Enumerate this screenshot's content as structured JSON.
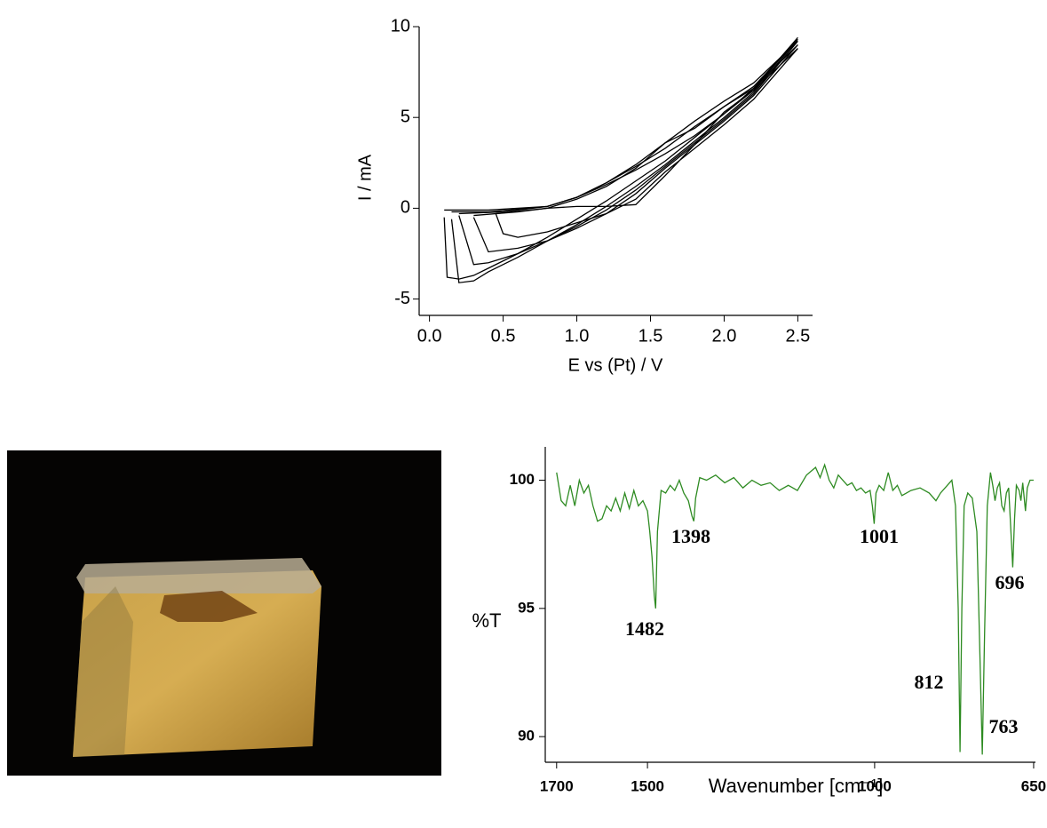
{
  "chart_data": [
    {
      "type": "line",
      "xlabel": "E vs (Pt) / V",
      "ylabel": "I / mA",
      "xlim": [
        -0.07,
        2.6
      ],
      "ylim": [
        -5.9,
        10
      ],
      "xticks": [
        {
          "value": 0,
          "label": "0.0"
        },
        0.5,
        {
          "value": 1,
          "label": "1.0"
        },
        1.5,
        {
          "value": 2,
          "label": "2.0"
        },
        2.5
      ],
      "yticks": [
        -5,
        0,
        5,
        10
      ],
      "series": [
        {
          "color": "#000000",
          "x": [
            0.1,
            0.4,
            0.8,
            1.0,
            1.2,
            1.4,
            1.6,
            1.8,
            2.0,
            2.2,
            2.5,
            2.2,
            2.0,
            1.8,
            1.6,
            1.4,
            1.2,
            1.0,
            0.8,
            0.6,
            0.4,
            0.3,
            0.2,
            0.12,
            0.1
          ],
          "values": [
            -0.1,
            -0.1,
            0.1,
            0.6,
            1.3,
            2.1,
            3.0,
            4.0,
            5.2,
            6.5,
            9.4,
            6.6,
            5.2,
            3.9,
            2.6,
            1.5,
            0.4,
            -0.6,
            -1.6,
            -2.5,
            -3.3,
            -3.7,
            -3.9,
            -3.8,
            -0.5
          ]
        },
        {
          "color": "#000000",
          "x": [
            0.15,
            0.4,
            0.8,
            1.0,
            1.2,
            1.4,
            1.6,
            1.8,
            2.0,
            2.2,
            2.5,
            2.2,
            2.0,
            1.8,
            1.6,
            1.4,
            1.2,
            1.0,
            0.8,
            0.6,
            0.4,
            0.3,
            0.2,
            0.15
          ],
          "values": [
            -0.2,
            -0.2,
            0.1,
            0.6,
            1.4,
            2.3,
            3.3,
            4.5,
            5.6,
            6.7,
            9.3,
            6.4,
            5.0,
            3.7,
            2.4,
            1.2,
            0.1,
            -0.9,
            -1.8,
            -2.7,
            -3.5,
            -4.0,
            -4.1,
            -0.6
          ]
        },
        {
          "color": "#000000",
          "x": [
            0.2,
            0.5,
            0.8,
            1.0,
            1.2,
            1.4,
            1.6,
            1.8,
            2.0,
            2.2,
            2.5,
            2.2,
            2.0,
            1.8,
            1.6,
            1.4,
            1.2,
            1.0,
            0.8,
            0.6,
            0.4,
            0.3,
            0.2
          ],
          "values": [
            -0.3,
            -0.2,
            0.1,
            0.6,
            1.4,
            2.4,
            3.6,
            4.8,
            5.9,
            6.9,
            9.2,
            6.3,
            4.9,
            3.6,
            2.3,
            1.0,
            -0.1,
            -1.0,
            -1.8,
            -2.5,
            -3.0,
            -3.1,
            -0.4
          ]
        },
        {
          "color": "#000000",
          "x": [
            0.3,
            0.6,
            0.8,
            1.0,
            1.2,
            1.4,
            1.6,
            1.8,
            2.0,
            2.2,
            2.5,
            2.2,
            2.0,
            1.8,
            1.6,
            1.4,
            1.2,
            1.0,
            0.8,
            0.6,
            0.4,
            0.3
          ],
          "values": [
            -0.4,
            -0.2,
            0.0,
            0.5,
            1.2,
            2.2,
            3.6,
            4.4,
            5.6,
            6.6,
            9.0,
            6.2,
            4.8,
            3.5,
            2.2,
            0.8,
            -0.3,
            -1.1,
            -1.8,
            -2.2,
            -2.4,
            -0.5
          ]
        },
        {
          "color": "#000000",
          "x": [
            0.45,
            0.8,
            1.0,
            1.2,
            1.4,
            1.6,
            1.8,
            2.0,
            2.2,
            2.5,
            2.2,
            2.0,
            1.8,
            1.6,
            1.4,
            1.2,
            1.0,
            0.8,
            0.6,
            0.5,
            0.45
          ],
          "values": [
            -0.3,
            0.0,
            0.1,
            0.1,
            0.2,
            1.8,
            3.5,
            5.3,
            6.5,
            8.8,
            6.0,
            4.6,
            3.3,
            2.0,
            0.5,
            -0.3,
            -0.8,
            -1.3,
            -1.6,
            -1.4,
            -0.3
          ]
        }
      ]
    },
    {
      "type": "line",
      "xlabel": "Wavenumber [cm⁻¹]",
      "ylabel": "%T",
      "xlim": [
        1725,
        646
      ],
      "ylim": [
        89.0,
        101.3
      ],
      "xticks": [
        1700,
        1500,
        1000,
        650
      ],
      "yticks": [
        90,
        95,
        100
      ],
      "color": "#2e8b22",
      "x": [
        1700,
        1690,
        1680,
        1670,
        1660,
        1650,
        1640,
        1630,
        1620,
        1610,
        1600,
        1590,
        1580,
        1570,
        1560,
        1550,
        1540,
        1530,
        1520,
        1510,
        1500,
        1495,
        1490,
        1485,
        1482,
        1478,
        1470,
        1460,
        1450,
        1440,
        1430,
        1420,
        1410,
        1402,
        1398,
        1394,
        1385,
        1370,
        1350,
        1330,
        1310,
        1290,
        1270,
        1250,
        1230,
        1210,
        1190,
        1170,
        1150,
        1130,
        1120,
        1110,
        1100,
        1090,
        1080,
        1070,
        1060,
        1050,
        1040,
        1030,
        1020,
        1010,
        1005,
        1001,
        997,
        990,
        980,
        970,
        960,
        950,
        940,
        920,
        900,
        880,
        865,
        855,
        840,
        830,
        822,
        816,
        812,
        808,
        803,
        795,
        785,
        775,
        768,
        763,
        758,
        752,
        745,
        740,
        735,
        730,
        725,
        720,
        715,
        710,
        705,
        700,
        696,
        692,
        688,
        682,
        678,
        674,
        668,
        664,
        658,
        650
      ],
      "values": [
        100.3,
        99.2,
        99.0,
        99.8,
        99.0,
        100.0,
        99.5,
        99.8,
        99.0,
        98.4,
        98.5,
        99.0,
        98.8,
        99.3,
        98.8,
        99.5,
        98.9,
        99.6,
        99.0,
        99.2,
        98.8,
        98.0,
        97.0,
        95.5,
        95.0,
        98.0,
        99.6,
        99.5,
        99.8,
        99.6,
        100.0,
        99.5,
        99.2,
        98.6,
        98.4,
        99.3,
        100.1,
        100.0,
        100.2,
        99.9,
        100.1,
        99.7,
        100.0,
        99.8,
        99.9,
        99.6,
        99.8,
        99.6,
        100.2,
        100.5,
        100.1,
        100.6,
        100.0,
        99.7,
        100.2,
        100.0,
        99.8,
        99.9,
        99.6,
        99.7,
        99.5,
        99.6,
        99.0,
        98.3,
        99.5,
        99.8,
        99.6,
        100.3,
        99.6,
        99.8,
        99.4,
        99.6,
        99.7,
        99.5,
        99.2,
        99.5,
        99.8,
        100.0,
        99.0,
        95.0,
        89.4,
        95.0,
        99.0,
        99.5,
        99.3,
        98.0,
        93.0,
        89.3,
        94.0,
        99.0,
        100.3,
        99.8,
        99.2,
        99.7,
        99.9,
        99.0,
        98.8,
        99.5,
        99.7,
        98.0,
        96.6,
        98.5,
        99.8,
        99.6,
        99.2,
        99.9,
        98.8,
        99.7,
        100.0,
        100.0
      ],
      "annotations": [
        1482,
        1398,
        1001,
        812,
        763,
        696
      ]
    }
  ]
}
